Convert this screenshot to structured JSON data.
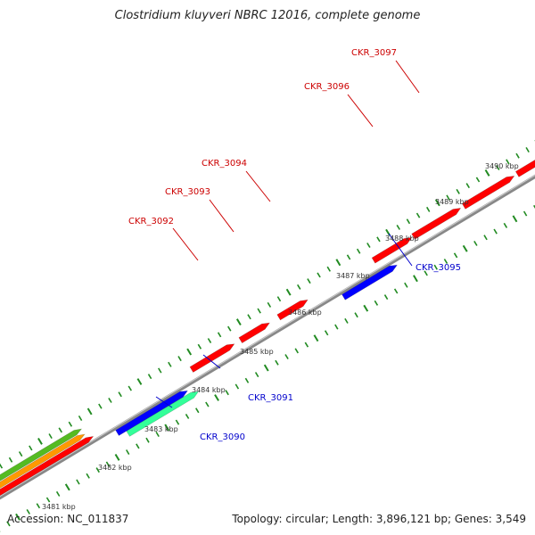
{
  "title": "Clostridium kluyveri NBRC 12016, complete genome",
  "footer": {
    "accession": "Accession: NC_011837",
    "summary": "Topology: circular; Length: 3,896,121 bp; Genes: 3,549"
  },
  "colors": {
    "forward_gene": "#ff0000",
    "reverse_gene": "#0000ff",
    "cyan_feature": "#33ff99",
    "orange_feature": "#ff9900",
    "green_feature": "#55bb22",
    "backbone": "#888888",
    "tick": "#228b22",
    "label_forward": "#cc0000",
    "label_reverse": "#0000cc"
  },
  "genome_map": {
    "ticks": [
      "3481 kbp",
      "3482 kbp",
      "3483 kbp",
      "3484 kbp",
      "3485 kbp",
      "3486 kbp",
      "3487 kbp",
      "3488 kbp",
      "3489 kbp",
      "3490 kbp"
    ],
    "genes": [
      {
        "id": "CKR_3090",
        "strand": "cyan"
      },
      {
        "id": "CKR_3091",
        "strand": "reverse"
      },
      {
        "id": "CKR_3092",
        "strand": "forward"
      },
      {
        "id": "CKR_3093",
        "strand": "forward"
      },
      {
        "id": "CKR_3094",
        "strand": "forward"
      },
      {
        "id": "CKR_3095",
        "strand": "reverse"
      },
      {
        "id": "CKR_3096",
        "strand": "forward"
      },
      {
        "id": "CKR_3097",
        "strand": "forward"
      }
    ]
  }
}
